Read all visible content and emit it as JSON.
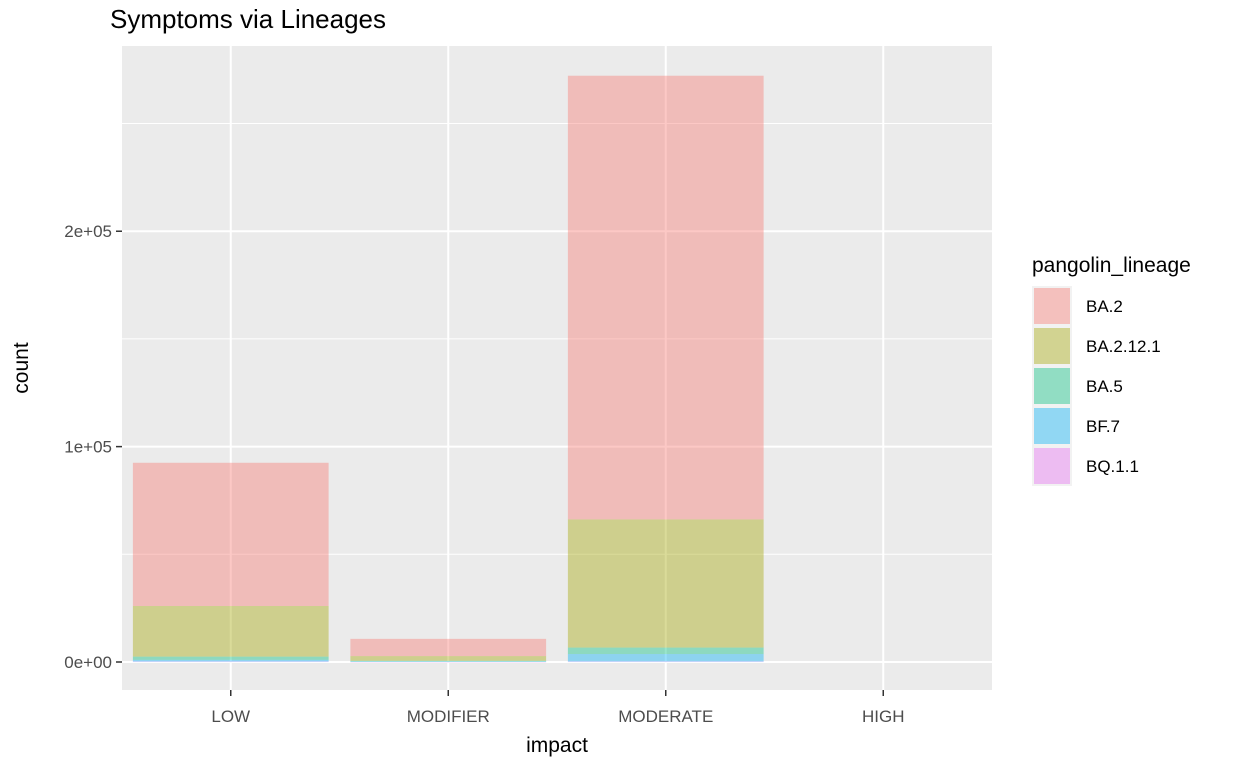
{
  "chart_data": {
    "type": "bar",
    "stacked": true,
    "title": "Symptoms via Lineages",
    "xlabel": "impact",
    "ylabel": "count",
    "categories": [
      "LOW",
      "MODIFIER",
      "MODERATE",
      "HIGH"
    ],
    "y_ticks": [
      {
        "value": 0,
        "label": "0e+00"
      },
      {
        "value": 100000,
        "label": "1e+05"
      },
      {
        "value": 200000,
        "label": "2e+05"
      }
    ],
    "ylim": [
      -13000,
      286000
    ],
    "grid": true,
    "legend": {
      "title": "pangolin_lineage",
      "position": "right"
    },
    "series": [
      {
        "name": "BA.2",
        "color": "#F8766D",
        "values": [
          66500,
          8000,
          206000,
          0
        ]
      },
      {
        "name": "BA.2.12.1",
        "color": "#A3A500",
        "values": [
          23500,
          2200,
          59500,
          0
        ]
      },
      {
        "name": "BA.5",
        "color": "#00BF7D",
        "values": [
          1500,
          300,
          3000,
          0
        ]
      },
      {
        "name": "BF.7",
        "color": "#00B0F6",
        "values": [
          800,
          200,
          3500,
          0
        ]
      },
      {
        "name": "BQ.1.1",
        "color": "#E76BF3",
        "values": [
          200,
          50,
          200,
          0
        ]
      }
    ]
  }
}
